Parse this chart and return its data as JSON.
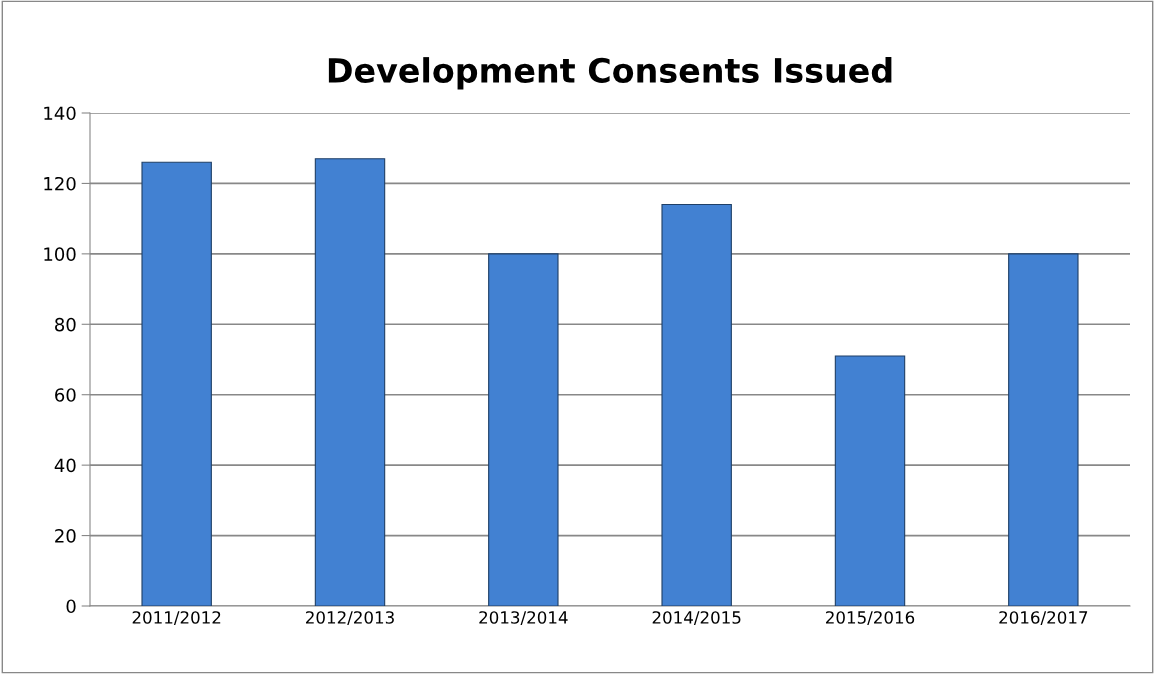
{
  "chart_data": {
    "type": "bar",
    "title": "Development Consents Issued",
    "categories": [
      "2011/2012",
      "2012/2013",
      "2013/2014",
      "2014/2015",
      "2015/2016",
      "2016/2017"
    ],
    "values": [
      126,
      127,
      100,
      114,
      71,
      100
    ],
    "color": "#4281d2",
    "ylim": [
      0,
      140
    ],
    "yticks": [
      0,
      20,
      40,
      60,
      80,
      100,
      120,
      140
    ],
    "grid": "y"
  }
}
